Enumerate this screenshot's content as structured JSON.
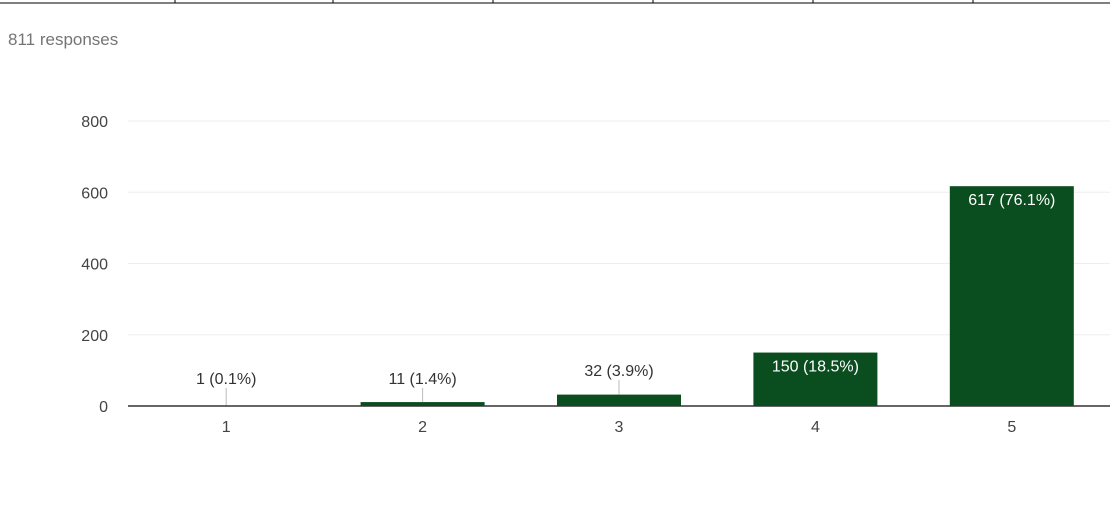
{
  "summary": {
    "responses_label": "811 responses"
  },
  "colors": {
    "bar": "#0a4d1e",
    "axis": "#333333",
    "grid": "#eeeeee",
    "label_outside": "#333333",
    "label_inside": "#ffffff"
  },
  "chart_data": {
    "type": "bar",
    "categories": [
      "1",
      "2",
      "3",
      "4",
      "5"
    ],
    "values": [
      1,
      11,
      32,
      150,
      617
    ],
    "data_labels": [
      "1 (0.1%)",
      "11 (1.4%)",
      "32 (3.9%)",
      "150 (18.5%)",
      "617 (76.1%)"
    ],
    "ylim": [
      0,
      800
    ],
    "yticks": [
      0,
      200,
      400,
      600,
      800
    ],
    "ytick_labels": [
      "0",
      "200",
      "400",
      "600",
      "800"
    ],
    "grid": true,
    "title": "",
    "xlabel": "",
    "ylabel": ""
  }
}
